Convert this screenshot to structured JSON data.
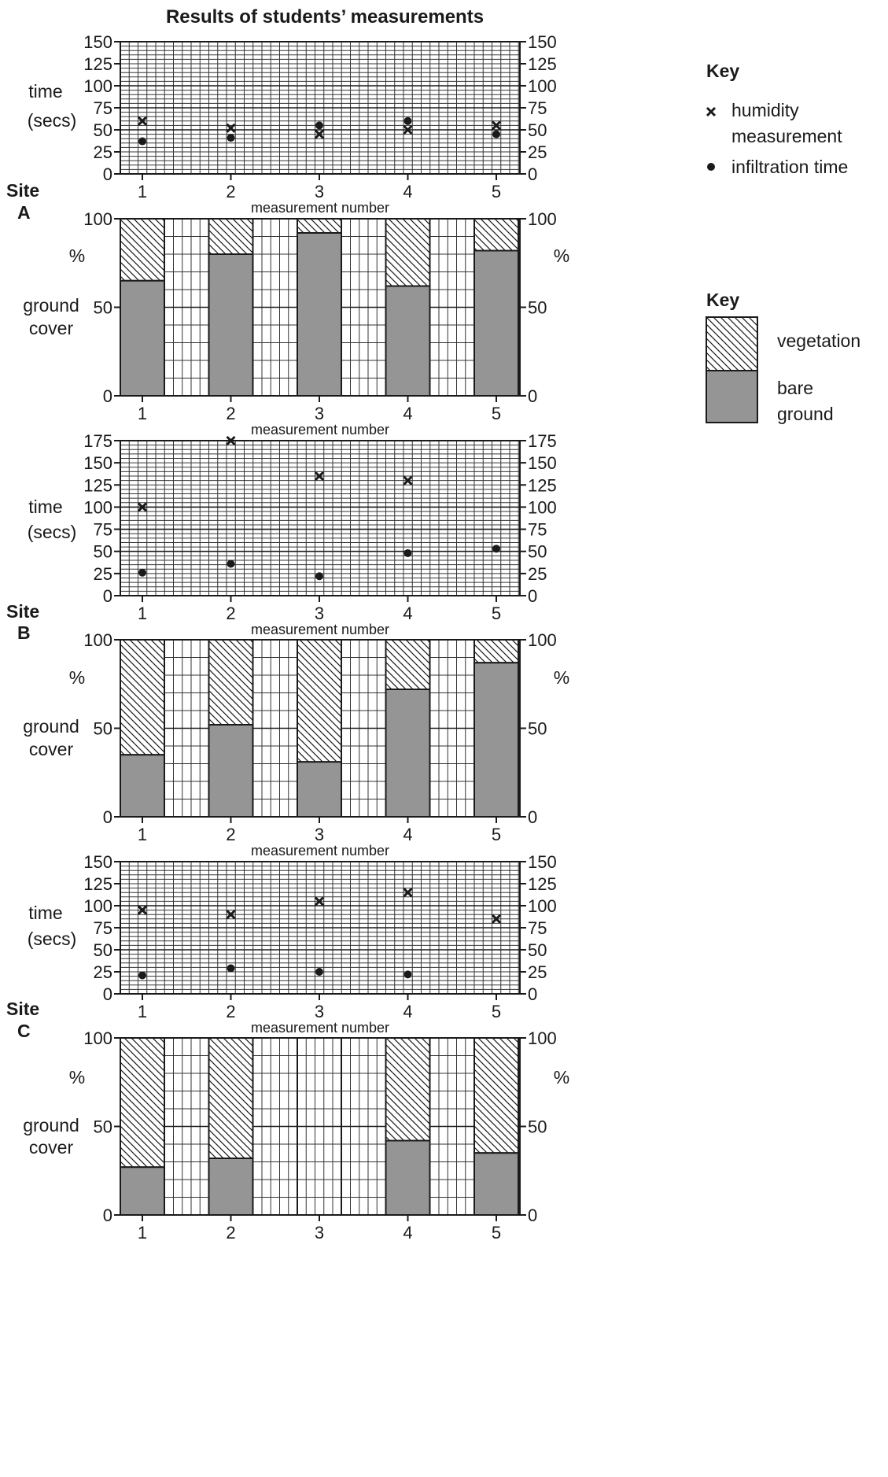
{
  "title": "Results of students’ measurements",
  "xlabel": "measurement number",
  "site_word": "Site",
  "time_label": [
    "time",
    "(secs)"
  ],
  "cover_label": [
    "ground",
    "cover"
  ],
  "percent_sign": "%",
  "key_title": "Key",
  "key_time": {
    "humidity": [
      "humidity",
      "measurement"
    ],
    "infiltration": "infiltration time"
  },
  "key_cover": {
    "vegetation": "vegetation",
    "bare": [
      "bare",
      "ground"
    ]
  },
  "colors": {
    "bare_ground": "#959595",
    "ink": "#1a1a1a",
    "grid": "#333333"
  },
  "chart_data": [
    {
      "type": "scatter",
      "site": "A",
      "title": "Results of students’ measurements",
      "xlabel": "measurement number",
      "ylabel": "time (secs)",
      "x": [
        1,
        2,
        3,
        4,
        5
      ],
      "ylim": [
        0,
        150
      ],
      "yticks": [
        0,
        25,
        50,
        75,
        100,
        125,
        150
      ],
      "grid": true,
      "series": [
        {
          "name": "humidity measurement",
          "marker": "x",
          "values": [
            60,
            52,
            45,
            50,
            55
          ]
        },
        {
          "name": "infiltration time",
          "marker": "dot",
          "values": [
            37,
            41,
            55,
            60,
            45
          ]
        }
      ]
    },
    {
      "type": "bar",
      "site": "A",
      "stacked": true,
      "xlabel": "measurement number",
      "ylabel": "% ground cover",
      "categories": [
        "1",
        "2",
        "3",
        "4",
        "5"
      ],
      "ylim": [
        0,
        100
      ],
      "yticks": [
        0,
        50,
        100
      ],
      "series": [
        {
          "name": "bare ground",
          "values": [
            65,
            80,
            92,
            62,
            82
          ]
        },
        {
          "name": "vegetation",
          "values": [
            35,
            20,
            8,
            38,
            18
          ]
        }
      ]
    },
    {
      "type": "scatter",
      "site": "B",
      "xlabel": "measurement number",
      "ylabel": "time (secs)",
      "x": [
        1,
        2,
        3,
        4,
        5
      ],
      "ylim": [
        0,
        175
      ],
      "yticks": [
        0,
        25,
        50,
        75,
        100,
        125,
        150,
        175
      ],
      "grid": true,
      "series": [
        {
          "name": "humidity measurement",
          "marker": "x",
          "values": [
            100,
            175,
            135,
            130,
            null
          ]
        },
        {
          "name": "infiltration time",
          "marker": "dot",
          "values": [
            26,
            36,
            22,
            48,
            53
          ]
        }
      ]
    },
    {
      "type": "bar",
      "site": "B",
      "stacked": true,
      "xlabel": "measurement number",
      "ylabel": "% ground cover",
      "categories": [
        "1",
        "2",
        "3",
        "4",
        "5"
      ],
      "ylim": [
        0,
        100
      ],
      "yticks": [
        0,
        50,
        100
      ],
      "series": [
        {
          "name": "bare ground",
          "values": [
            35,
            52,
            31,
            72,
            87
          ]
        },
        {
          "name": "vegetation",
          "values": [
            65,
            48,
            69,
            28,
            13
          ]
        }
      ]
    },
    {
      "type": "scatter",
      "site": "C",
      "xlabel": "measurement number",
      "ylabel": "time (secs)",
      "x": [
        1,
        2,
        3,
        4,
        5
      ],
      "ylim": [
        0,
        150
      ],
      "yticks": [
        0,
        25,
        50,
        75,
        100,
        125,
        150
      ],
      "grid": true,
      "series": [
        {
          "name": "humidity measurement",
          "marker": "x",
          "values": [
            95,
            90,
            105,
            115,
            85
          ]
        },
        {
          "name": "infiltration time",
          "marker": "dot",
          "values": [
            21,
            29,
            25,
            22,
            null
          ]
        }
      ]
    },
    {
      "type": "bar",
      "site": "C",
      "stacked": true,
      "ylabel": "% ground cover",
      "categories": [
        "1",
        "2",
        "3",
        "4",
        "5"
      ],
      "ylim": [
        0,
        100
      ],
      "yticks": [
        0,
        50,
        100
      ],
      "series": [
        {
          "name": "bare ground",
          "values": [
            27,
            32,
            0,
            42,
            35
          ]
        },
        {
          "name": "vegetation",
          "values": [
            73,
            68,
            0,
            58,
            65
          ]
        }
      ]
    }
  ]
}
